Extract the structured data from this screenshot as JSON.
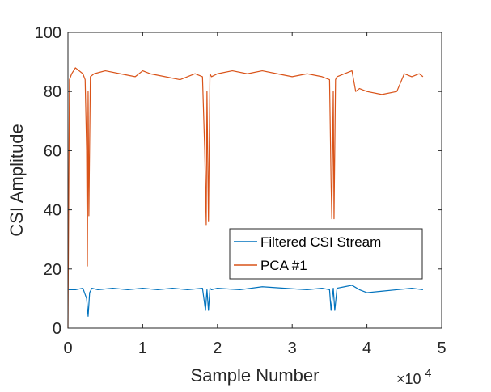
{
  "chart_data": {
    "type": "line",
    "xlabel": "Sample Number",
    "ylabel": "CSI Amplitude",
    "x_multiplier_label": "×10",
    "x_multiplier_exp": "4",
    "xlim": [
      0,
      5
    ],
    "ylim": [
      0,
      100
    ],
    "xticks": [
      0,
      1,
      2,
      3,
      4,
      5
    ],
    "xtick_labels": [
      "0",
      "1",
      "2",
      "3",
      "4",
      "5"
    ],
    "yticks": [
      0,
      20,
      40,
      60,
      80,
      100
    ],
    "ytick_labels": [
      "0",
      "20",
      "40",
      "60",
      "80",
      "100"
    ],
    "grid": false,
    "legend_position": "lower-right",
    "series": [
      {
        "name": "Filtered CSI Stream",
        "color": "#0072BD",
        "x": [
          0,
          0.1,
          0.2,
          0.25,
          0.27,
          0.29,
          0.32,
          0.4,
          0.6,
          0.8,
          1.0,
          1.2,
          1.4,
          1.6,
          1.8,
          1.84,
          1.86,
          1.88,
          1.9,
          1.92,
          2.0,
          2.3,
          2.6,
          2.9,
          3.2,
          3.4,
          3.5,
          3.52,
          3.55,
          3.57,
          3.6,
          3.7,
          3.8,
          3.9,
          4.0,
          4.2,
          4.4,
          4.6,
          4.75
        ],
        "values": [
          13,
          13,
          13.5,
          10,
          4,
          12,
          13.5,
          13,
          13.5,
          13,
          13.5,
          13,
          13.5,
          13,
          13.5,
          6,
          13,
          6,
          13.5,
          13,
          13.5,
          13,
          14,
          13.5,
          13,
          13.5,
          13,
          6,
          13.5,
          6,
          13.5,
          14,
          14.5,
          13,
          12,
          12.5,
          13,
          13.5,
          13
        ]
      },
      {
        "name": "PCA #1",
        "color": "#D95319",
        "x": [
          0,
          0.02,
          0.05,
          0.1,
          0.15,
          0.2,
          0.23,
          0.25,
          0.26,
          0.27,
          0.28,
          0.29,
          0.3,
          0.35,
          0.5,
          0.7,
          0.9,
          1.0,
          1.1,
          1.3,
          1.5,
          1.7,
          1.8,
          1.83,
          1.85,
          1.86,
          1.88,
          1.9,
          1.92,
          2.0,
          2.2,
          2.4,
          2.6,
          2.8,
          3.0,
          3.2,
          3.4,
          3.5,
          3.52,
          3.53,
          3.55,
          3.56,
          3.58,
          3.6,
          3.7,
          3.8,
          3.85,
          3.9,
          4.0,
          4.2,
          4.4,
          4.5,
          4.6,
          4.7,
          4.75
        ],
        "values": [
          0,
          84,
          86,
          88,
          87,
          86,
          84,
          60,
          21,
          80,
          38,
          62,
          85,
          86,
          87,
          86,
          85,
          87,
          86,
          85,
          84,
          86,
          85,
          60,
          35,
          80,
          36,
          86,
          85,
          86,
          87,
          86,
          87,
          86,
          85,
          86,
          85,
          84,
          50,
          37,
          80,
          37,
          84,
          85,
          86,
          87,
          80,
          81,
          80,
          79,
          80,
          86,
          85,
          86,
          85
        ]
      }
    ]
  }
}
